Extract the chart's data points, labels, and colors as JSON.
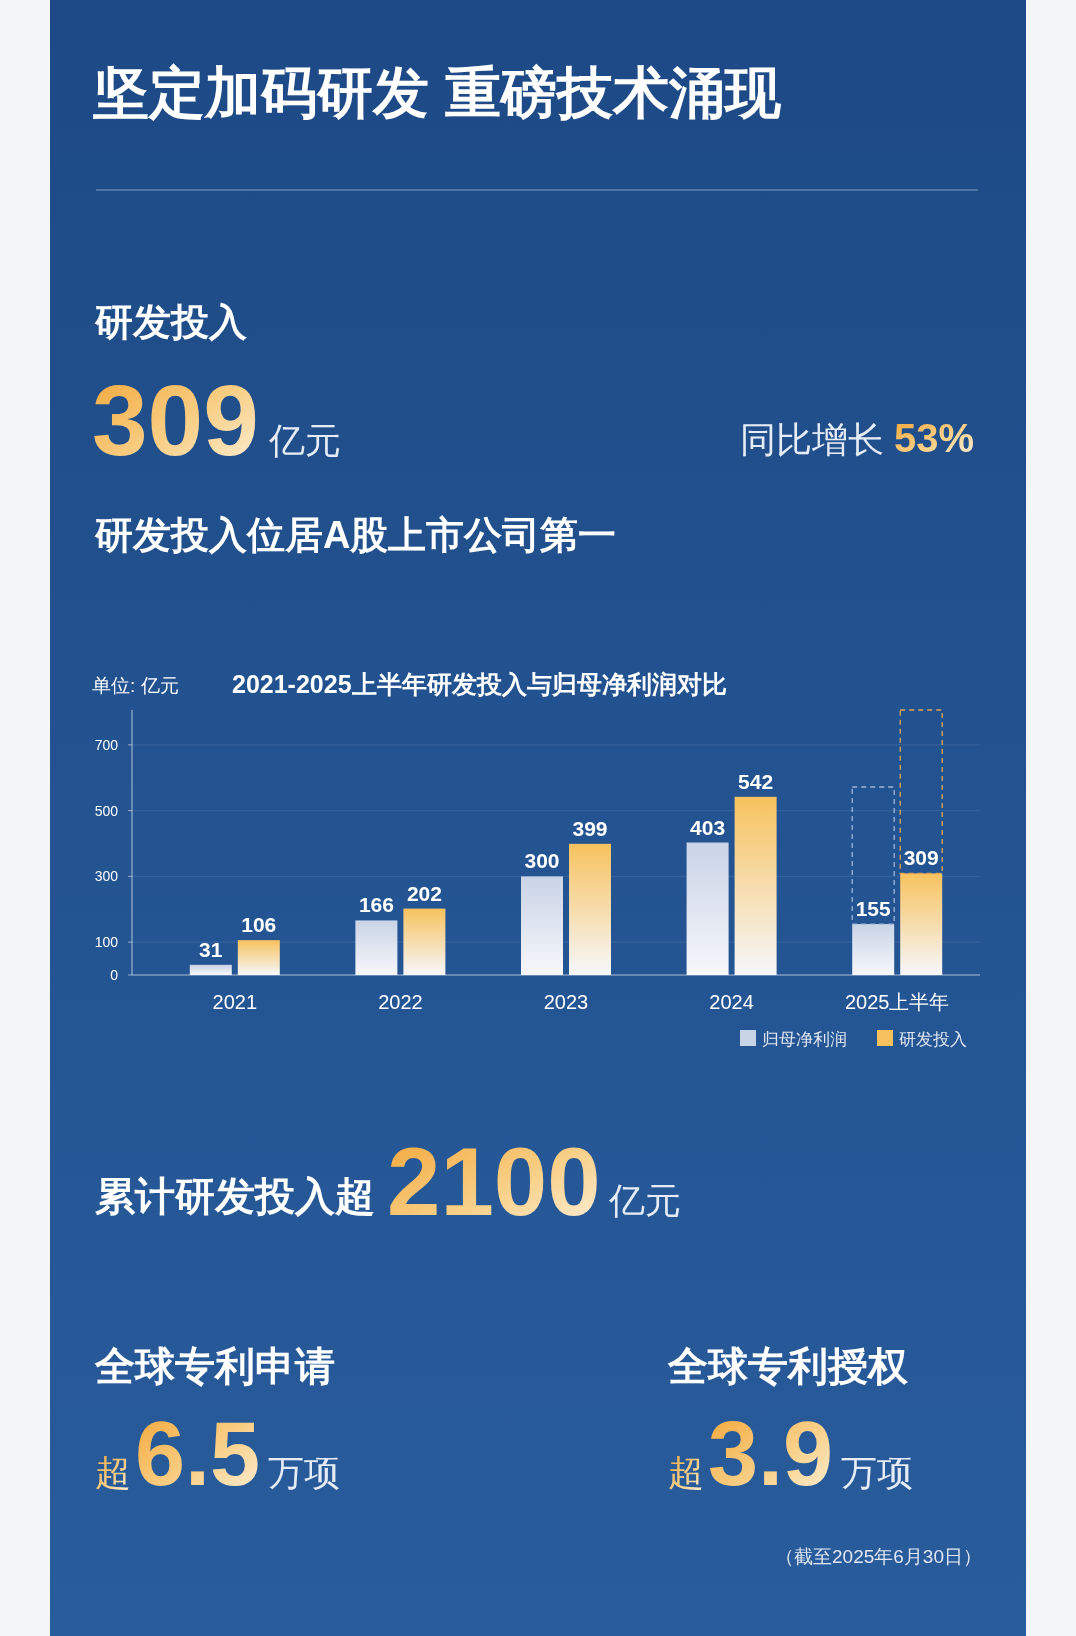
{
  "chart_data": [
    {
      "type": "other",
      "title": "坚定加码研发 重磅技术涌现",
      "annotations": [
        "研发投入",
        "309",
        "亿元",
        "同比增长",
        "53%",
        "研发投入位居A股上市公司第一"
      ]
    },
    {
      "type": "bar",
      "title": "2021-2025上半年研发投入与归母净利润对比",
      "ylabel": "单位: 亿元",
      "categories": [
        "2021",
        "2022",
        "2023",
        "2024",
        "2025上半年"
      ],
      "series": [
        {
          "name": "归母净利润",
          "color": "#c9d4e6",
          "values": [
            31,
            166,
            300,
            403,
            155
          ]
        },
        {
          "name": "研发投入",
          "color": "#f7c25e",
          "values": [
            106,
            202,
            399,
            542,
            309
          ]
        }
      ],
      "ylim": [
        0,
        800
      ],
      "yticks": [
        0,
        100,
        300,
        500,
        700
      ],
      "grid": "y",
      "data_labels": true,
      "legend": "bottom right"
    },
    {
      "type": "other",
      "annotations": [
        "累计研发投入超",
        "2100",
        "亿元",
        "全球专利申请",
        "超",
        "6.5",
        "万项",
        "全球专利授权",
        "超",
        "3.9",
        "万项",
        "（截至2025年6月30日）"
      ]
    }
  ]
}
